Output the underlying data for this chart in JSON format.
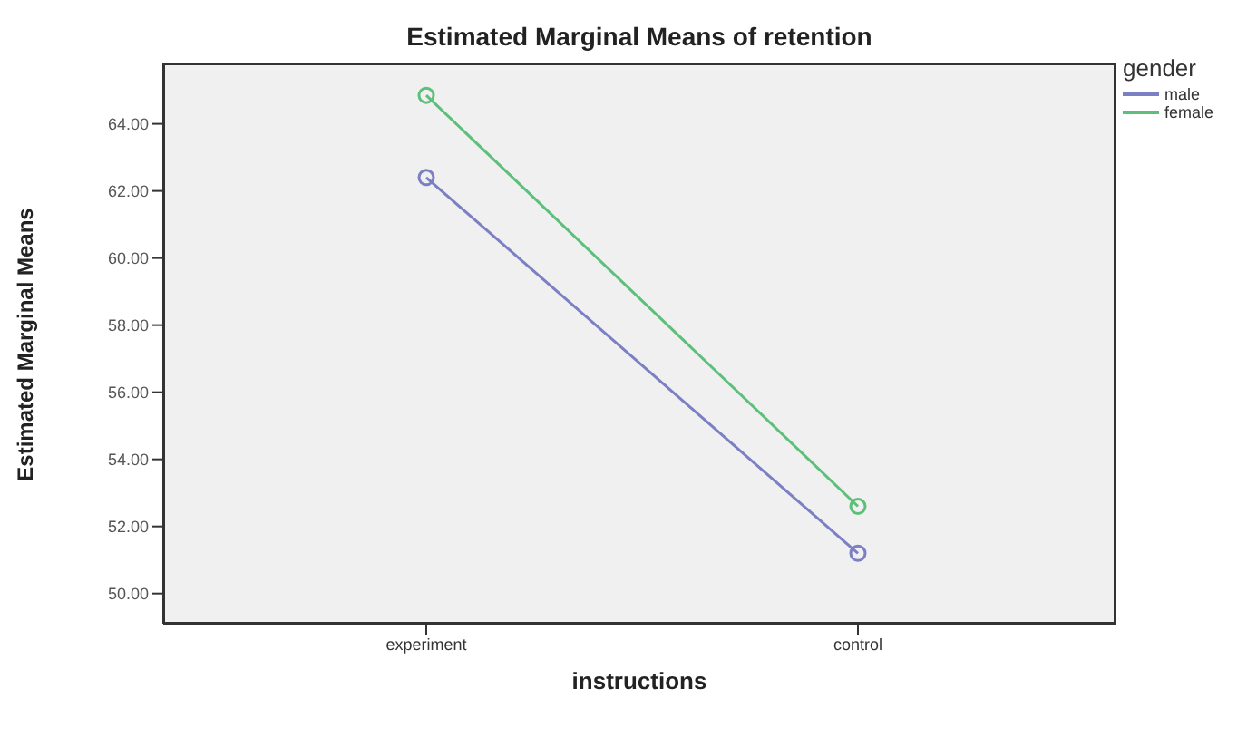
{
  "chart_data": {
    "type": "line",
    "title": "Estimated Marginal Means of retention",
    "xlabel": "instructions",
    "ylabel": "Estimated Marginal Means",
    "legend_title": "gender",
    "categories": [
      "experiment",
      "control"
    ],
    "series": [
      {
        "name": "male",
        "color": "#7b7fc4",
        "values": [
          62.4,
          51.2
        ]
      },
      {
        "name": "female",
        "color": "#5cbf7a",
        "values": [
          64.85,
          52.6
        ]
      }
    ],
    "ylim": [
      49.1,
      65.8
    ],
    "yticks": [
      {
        "value": 50,
        "label": "50.00"
      },
      {
        "value": 52,
        "label": "52.00"
      },
      {
        "value": 54,
        "label": "54.00"
      },
      {
        "value": 56,
        "label": "56.00"
      },
      {
        "value": 58,
        "label": "58.00"
      },
      {
        "value": 60,
        "label": "60.00"
      },
      {
        "value": 62,
        "label": "62.00"
      },
      {
        "value": 64,
        "label": "64.00"
      }
    ],
    "grid": false,
    "legend": "top right",
    "marker": "circle",
    "line_style": "solid"
  }
}
